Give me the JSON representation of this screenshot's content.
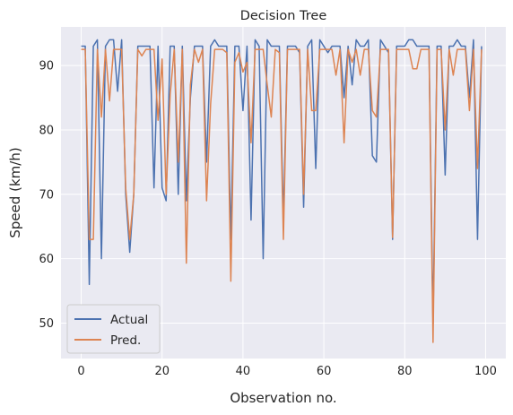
{
  "chart_data": {
    "type": "line",
    "title": "Decision Tree",
    "xlabel": "Observation no.",
    "ylabel": "Speed (km/h)",
    "xlim": [
      -5,
      105
    ],
    "ylim": [
      44.5,
      96
    ],
    "xticks": [
      0,
      20,
      40,
      60,
      80,
      100
    ],
    "yticks": [
      50,
      60,
      70,
      80,
      90
    ],
    "grid": true,
    "legend_position": "lower-left",
    "series": [
      {
        "name": "Actual",
        "color": "#4c72b0",
        "y": [
          93,
          93,
          56,
          93,
          94,
          60,
          93,
          94,
          94,
          86,
          94,
          70,
          61,
          70,
          93,
          93,
          93,
          93,
          71,
          93,
          71,
          69,
          93,
          93,
          70,
          93,
          69,
          85,
          93,
          93,
          93,
          75,
          93,
          94,
          93,
          93,
          93,
          63,
          93,
          93,
          83,
          93,
          66,
          94,
          93,
          60,
          94,
          93,
          93,
          93,
          66,
          93,
          93,
          93,
          92,
          68,
          93,
          94,
          74,
          94,
          93,
          92,
          93,
          93,
          93,
          85,
          93,
          87,
          94,
          93,
          93,
          94,
          76,
          75,
          94,
          93,
          92,
          63,
          93,
          93,
          93,
          94,
          94,
          93,
          93,
          93,
          93,
          50,
          93,
          93,
          73,
          93,
          93,
          94,
          93,
          93,
          85,
          94,
          63,
          93
        ]
      },
      {
        "name": "Pred.",
        "color": "#dd8452",
        "y": [
          92.5,
          92.5,
          63,
          63,
          92.5,
          82,
          92.5,
          84.5,
          92.5,
          92.5,
          92.5,
          71,
          63,
          70,
          92.5,
          91.5,
          92.5,
          92.5,
          92.5,
          81.5,
          91,
          70,
          85.5,
          92.5,
          75,
          92.5,
          59.3,
          87,
          92.5,
          90.5,
          92.5,
          69,
          84,
          92.5,
          92.5,
          92.5,
          92,
          56.5,
          90.5,
          92,
          89,
          90.5,
          78,
          92.5,
          92.5,
          92.5,
          87,
          82,
          92.5,
          92,
          63,
          92.5,
          92.5,
          92.5,
          92.5,
          70,
          92.5,
          83,
          83,
          92.5,
          92.5,
          92.5,
          92.5,
          88.5,
          92.5,
          78,
          92.5,
          90.5,
          92.5,
          88.5,
          92.5,
          92.5,
          83,
          82,
          92.5,
          92.5,
          92.5,
          63.3,
          92.5,
          92.5,
          92.5,
          92.5,
          89.5,
          89.5,
          92.5,
          92.5,
          92.5,
          47,
          92.5,
          92.5,
          80,
          92.5,
          88.5,
          92.5,
          92.5,
          92.5,
          83,
          92.5,
          74,
          92.5
        ]
      }
    ]
  }
}
